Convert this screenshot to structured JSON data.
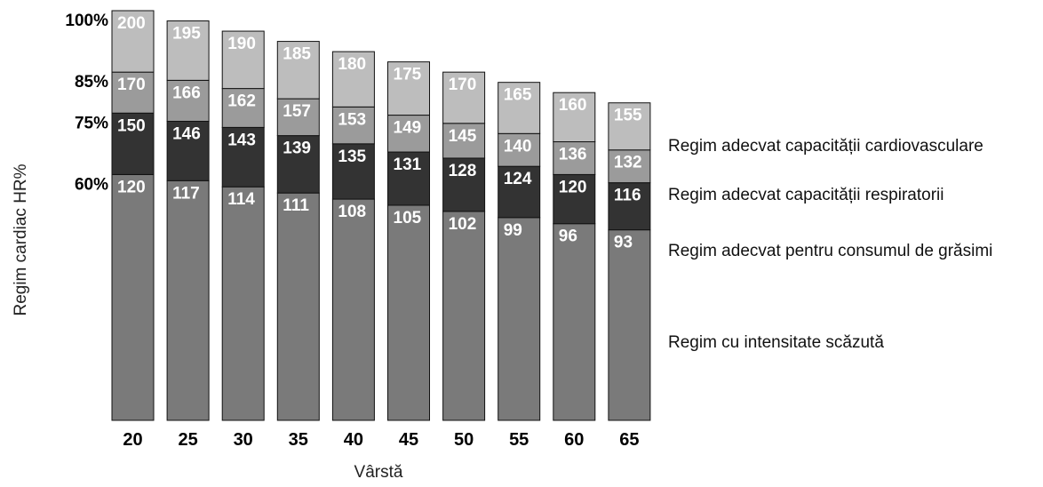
{
  "chart_data": {
    "type": "bar",
    "stacked": true,
    "xlabel": "Vârstă",
    "ylabel": "Regim cardiac HR%",
    "y_tick_labels": [
      "100%",
      "85%",
      "75%",
      "60%"
    ],
    "categories": [
      "20",
      "25",
      "30",
      "35",
      "40",
      "45",
      "50",
      "55",
      "60",
      "65"
    ],
    "max_hr": [
      200,
      195,
      190,
      185,
      180,
      175,
      170,
      165,
      160,
      155
    ],
    "series": [
      {
        "name": "Regim cu intensitate scăzută",
        "boundary": "60%",
        "values": [
          120,
          117,
          114,
          111,
          108,
          105,
          102,
          99,
          96,
          93
        ],
        "color": "#7a7a7a"
      },
      {
        "name": "Regim adecvat pentru consumul de grăsimi",
        "boundary": "75%",
        "values": [
          150,
          146,
          143,
          139,
          135,
          131,
          128,
          124,
          120,
          116
        ],
        "color": "#333333"
      },
      {
        "name": "Regim adecvat capacității respiratorii",
        "boundary": "85%",
        "values": [
          170,
          166,
          162,
          157,
          153,
          149,
          145,
          140,
          136,
          132
        ],
        "color": "#9b9b9b"
      },
      {
        "name": "Regim adecvat capacității cardiovasculare",
        "boundary": "100%",
        "values": [
          200,
          195,
          190,
          185,
          180,
          175,
          170,
          165,
          160,
          155
        ],
        "color": "#bdbdbd"
      }
    ],
    "legend_position": "right"
  }
}
